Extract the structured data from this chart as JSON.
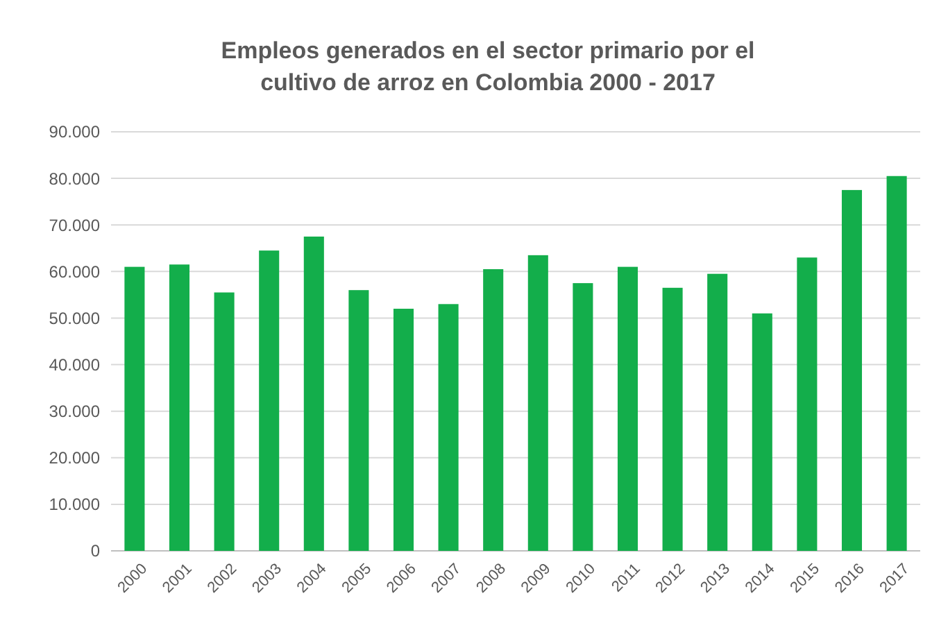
{
  "chart_data": {
    "type": "bar",
    "title": "Empleos generados en el sector primario por el\ncultivo de arroz en Colombia 2000 - 2017",
    "categories": [
      "2000",
      "2001",
      "2002",
      "2003",
      "2004",
      "2005",
      "2006",
      "2007",
      "2008",
      "2009",
      "2010",
      "2011",
      "2012",
      "2013",
      "2014",
      "2015",
      "2016",
      "2017"
    ],
    "values": [
      61000,
      61500,
      55500,
      64500,
      67500,
      56000,
      52000,
      53000,
      60500,
      63500,
      57500,
      61000,
      56500,
      59500,
      51000,
      63000,
      77500,
      80500
    ],
    "color": "#13ae4b",
    "ylim": [
      0,
      90000
    ],
    "yticks": [
      {
        "value": 0,
        "label": "0"
      },
      {
        "value": 10000,
        "label": "10.000"
      },
      {
        "value": 20000,
        "label": "20.000"
      },
      {
        "value": 30000,
        "label": "30.000"
      },
      {
        "value": 40000,
        "label": "40.000"
      },
      {
        "value": 50000,
        "label": "50.000"
      },
      {
        "value": 60000,
        "label": "60.000"
      },
      {
        "value": 70000,
        "label": "70.000"
      },
      {
        "value": 80000,
        "label": "80.000"
      },
      {
        "value": 90000,
        "label": "90.000"
      }
    ],
    "grid": "y"
  }
}
